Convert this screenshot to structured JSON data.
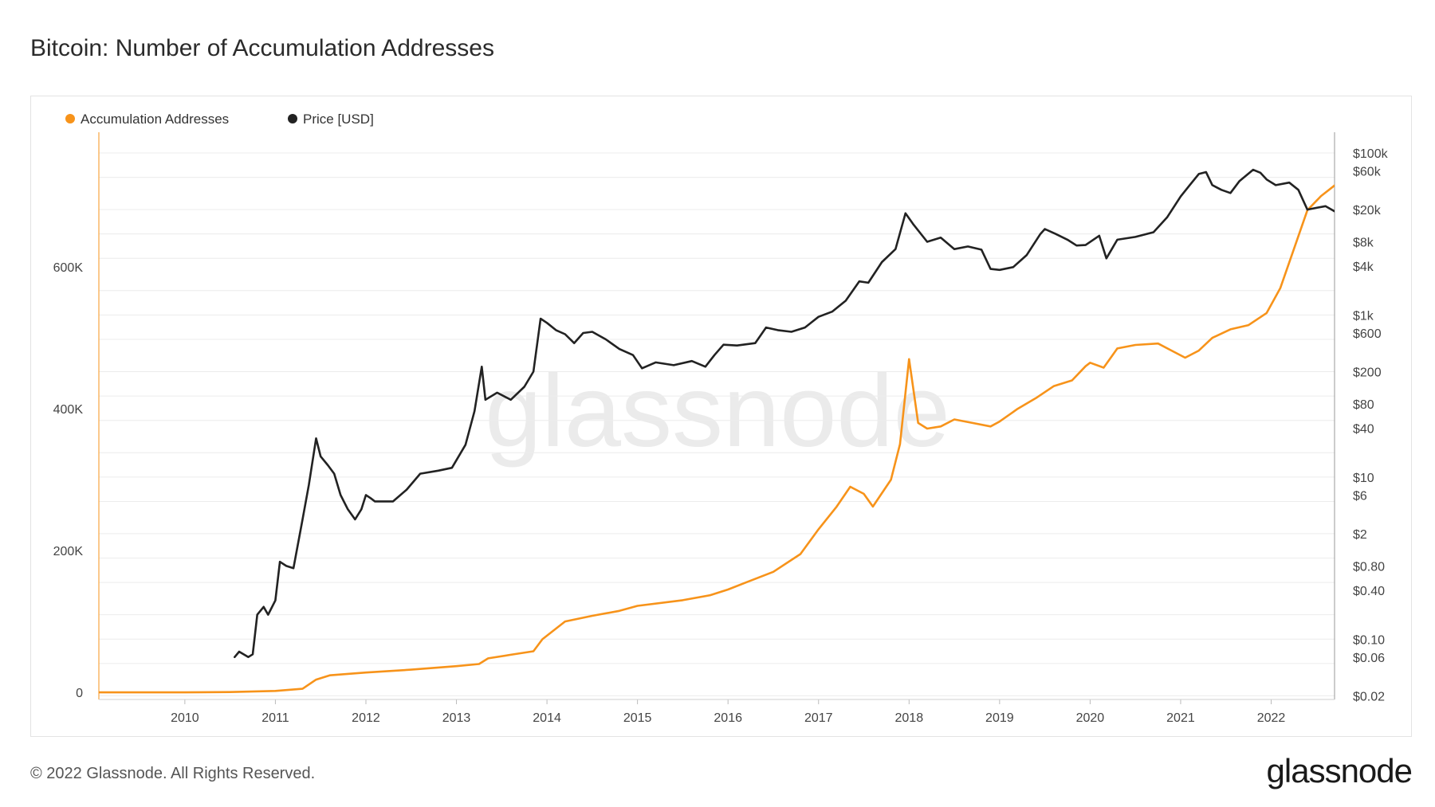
{
  "title": "Bitcoin: Number of Accumulation Addresses",
  "footer": {
    "copyright": "© 2022 Glassnode. All Rights Reserved.",
    "logo": "glassnode"
  },
  "watermark": "glassnode",
  "colors": {
    "accumulation": "#f7931a",
    "price": "#222222",
    "grid": "#ececec",
    "watermark": "#ebebeb"
  },
  "chart_data": {
    "type": "line",
    "legend_position": "top-left",
    "grid": true,
    "x_ticks": [
      "2010",
      "2011",
      "2012",
      "2013",
      "2014",
      "2015",
      "2016",
      "2017",
      "2018",
      "2019",
      "2020",
      "2021",
      "2022"
    ],
    "xlim": [
      2009.05,
      2022.7
    ],
    "left_axis": {
      "ticks": [
        "0",
        "200K",
        "400K",
        "600K"
      ],
      "tick_values": [
        0,
        200000,
        400000,
        600000
      ],
      "ylim": [
        -10000,
        790000
      ]
    },
    "right_axis": {
      "scale": "log",
      "ticks": [
        "$0.02",
        "$0.06",
        "$0.10",
        "$0.40",
        "$0.80",
        "$2",
        "$6",
        "$10",
        "$40",
        "$80",
        "$200",
        "$600",
        "$1k",
        "$4k",
        "$8k",
        "$20k",
        "$60k",
        "$100k"
      ],
      "tick_values": [
        0.02,
        0.06,
        0.1,
        0.4,
        0.8,
        2,
        6,
        10,
        40,
        80,
        200,
        600,
        1000,
        4000,
        8000,
        20000,
        60000,
        100000
      ],
      "ylim": [
        0.018,
        180000
      ]
    },
    "series": [
      {
        "name": "Accumulation Addresses",
        "axis": "left",
        "points": [
          [
            2009.05,
            0
          ],
          [
            2010.0,
            0
          ],
          [
            2010.5,
            500
          ],
          [
            2011.0,
            2000
          ],
          [
            2011.3,
            5000
          ],
          [
            2011.45,
            18000
          ],
          [
            2011.6,
            24000
          ],
          [
            2011.9,
            27000
          ],
          [
            2012.0,
            28000
          ],
          [
            2012.5,
            32000
          ],
          [
            2012.9,
            36000
          ],
          [
            2013.0,
            37000
          ],
          [
            2013.25,
            40000
          ],
          [
            2013.35,
            48000
          ],
          [
            2013.6,
            53000
          ],
          [
            2013.85,
            58000
          ],
          [
            2013.95,
            75000
          ],
          [
            2014.2,
            100000
          ],
          [
            2014.5,
            108000
          ],
          [
            2014.8,
            115000
          ],
          [
            2015.0,
            122000
          ],
          [
            2015.5,
            130000
          ],
          [
            2015.8,
            137000
          ],
          [
            2016.0,
            145000
          ],
          [
            2016.2,
            155000
          ],
          [
            2016.5,
            170000
          ],
          [
            2016.8,
            195000
          ],
          [
            2017.0,
            230000
          ],
          [
            2017.2,
            262000
          ],
          [
            2017.35,
            290000
          ],
          [
            2017.5,
            280000
          ],
          [
            2017.6,
            262000
          ],
          [
            2017.8,
            300000
          ],
          [
            2017.9,
            350000
          ],
          [
            2018.0,
            470000
          ],
          [
            2018.1,
            380000
          ],
          [
            2018.2,
            372000
          ],
          [
            2018.35,
            375000
          ],
          [
            2018.5,
            385000
          ],
          [
            2018.7,
            380000
          ],
          [
            2018.9,
            375000
          ],
          [
            2019.0,
            382000
          ],
          [
            2019.2,
            400000
          ],
          [
            2019.4,
            415000
          ],
          [
            2019.6,
            432000
          ],
          [
            2019.8,
            440000
          ],
          [
            2019.95,
            460000
          ],
          [
            2020.0,
            465000
          ],
          [
            2020.15,
            458000
          ],
          [
            2020.3,
            485000
          ],
          [
            2020.5,
            490000
          ],
          [
            2020.75,
            492000
          ],
          [
            2020.9,
            482000
          ],
          [
            2021.05,
            472000
          ],
          [
            2021.2,
            482000
          ],
          [
            2021.35,
            500000
          ],
          [
            2021.55,
            512000
          ],
          [
            2021.75,
            518000
          ],
          [
            2021.95,
            535000
          ],
          [
            2022.1,
            570000
          ],
          [
            2022.25,
            625000
          ],
          [
            2022.4,
            680000
          ],
          [
            2022.55,
            700000
          ],
          [
            2022.7,
            715000
          ]
        ]
      },
      {
        "name": "Price [USD]",
        "axis": "right",
        "points": [
          [
            2010.55,
            0.06
          ],
          [
            2010.6,
            0.07
          ],
          [
            2010.7,
            0.06
          ],
          [
            2010.75,
            0.065
          ],
          [
            2010.8,
            0.2
          ],
          [
            2010.87,
            0.25
          ],
          [
            2010.92,
            0.2
          ],
          [
            2011.0,
            0.3
          ],
          [
            2011.05,
            0.9
          ],
          [
            2011.12,
            0.8
          ],
          [
            2011.2,
            0.75
          ],
          [
            2011.3,
            3
          ],
          [
            2011.37,
            8
          ],
          [
            2011.45,
            30
          ],
          [
            2011.5,
            18
          ],
          [
            2011.58,
            14
          ],
          [
            2011.65,
            11
          ],
          [
            2011.72,
            6
          ],
          [
            2011.8,
            4
          ],
          [
            2011.88,
            3
          ],
          [
            2011.95,
            4
          ],
          [
            2012.0,
            6
          ],
          [
            2012.05,
            5.5
          ],
          [
            2012.1,
            5
          ],
          [
            2012.3,
            5
          ],
          [
            2012.45,
            7
          ],
          [
            2012.6,
            11
          ],
          [
            2012.8,
            12
          ],
          [
            2012.95,
            13
          ],
          [
            2013.1,
            25
          ],
          [
            2013.2,
            65
          ],
          [
            2013.28,
            230
          ],
          [
            2013.32,
            90
          ],
          [
            2013.45,
            110
          ],
          [
            2013.6,
            90
          ],
          [
            2013.75,
            130
          ],
          [
            2013.85,
            200
          ],
          [
            2013.93,
            900
          ],
          [
            2014.0,
            800
          ],
          [
            2014.1,
            650
          ],
          [
            2014.2,
            580
          ],
          [
            2014.3,
            450
          ],
          [
            2014.4,
            600
          ],
          [
            2014.5,
            620
          ],
          [
            2014.65,
            500
          ],
          [
            2014.8,
            380
          ],
          [
            2014.95,
            320
          ],
          [
            2015.05,
            220
          ],
          [
            2015.2,
            260
          ],
          [
            2015.4,
            240
          ],
          [
            2015.6,
            270
          ],
          [
            2015.75,
            230
          ],
          [
            2015.85,
            320
          ],
          [
            2015.95,
            430
          ],
          [
            2016.1,
            420
          ],
          [
            2016.3,
            450
          ],
          [
            2016.42,
            700
          ],
          [
            2016.55,
            650
          ],
          [
            2016.7,
            620
          ],
          [
            2016.85,
            700
          ],
          [
            2017.0,
            950
          ],
          [
            2017.15,
            1100
          ],
          [
            2017.3,
            1500
          ],
          [
            2017.45,
            2600
          ],
          [
            2017.55,
            2500
          ],
          [
            2017.7,
            4500
          ],
          [
            2017.85,
            6500
          ],
          [
            2017.96,
            18000
          ],
          [
            2018.05,
            13000
          ],
          [
            2018.2,
            8000
          ],
          [
            2018.35,
            9000
          ],
          [
            2018.5,
            6500
          ],
          [
            2018.65,
            7000
          ],
          [
            2018.8,
            6400
          ],
          [
            2018.9,
            3700
          ],
          [
            2019.0,
            3600
          ],
          [
            2019.15,
            3900
          ],
          [
            2019.3,
            5500
          ],
          [
            2019.45,
            10000
          ],
          [
            2019.5,
            11500
          ],
          [
            2019.62,
            10000
          ],
          [
            2019.75,
            8500
          ],
          [
            2019.85,
            7200
          ],
          [
            2019.95,
            7300
          ],
          [
            2020.1,
            9500
          ],
          [
            2020.18,
            5000
          ],
          [
            2020.3,
            8500
          ],
          [
            2020.5,
            9200
          ],
          [
            2020.7,
            10500
          ],
          [
            2020.85,
            16000
          ],
          [
            2021.0,
            29000
          ],
          [
            2021.1,
            40000
          ],
          [
            2021.2,
            55000
          ],
          [
            2021.28,
            58000
          ],
          [
            2021.35,
            40000
          ],
          [
            2021.45,
            35000
          ],
          [
            2021.55,
            32000
          ],
          [
            2021.65,
            45000
          ],
          [
            2021.8,
            62000
          ],
          [
            2021.88,
            57000
          ],
          [
            2021.95,
            47000
          ],
          [
            2022.05,
            40000
          ],
          [
            2022.2,
            43000
          ],
          [
            2022.3,
            35000
          ],
          [
            2022.4,
            20000
          ],
          [
            2022.5,
            21000
          ],
          [
            2022.6,
            22000
          ],
          [
            2022.7,
            19000
          ]
        ]
      }
    ]
  }
}
